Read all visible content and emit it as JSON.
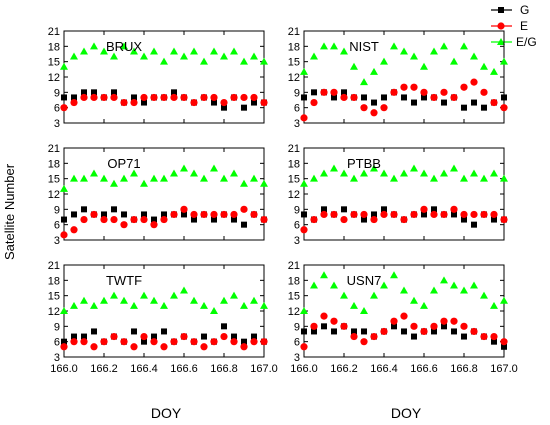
{
  "figure": {
    "ylabel": "Satellite Number",
    "xlabel": "DOY",
    "legend": [
      {
        "label": "G",
        "color": "#000000",
        "marker": "square"
      },
      {
        "label": "E",
        "color": "#ff0000",
        "marker": "circle"
      },
      {
        "label": "E/G",
        "color": "#00ff00",
        "marker": "triangle"
      }
    ]
  },
  "chart_data": [
    {
      "type": "scatter",
      "title": "BRUX",
      "xlim": [
        166.0,
        167.0
      ],
      "ylim": [
        3,
        21
      ],
      "xticks": [
        "166.0",
        "166.2",
        "166.4",
        "166.6",
        "166.8",
        "167.0"
      ],
      "yticks": [
        "3",
        "6",
        "9",
        "12",
        "15",
        "18",
        "21"
      ],
      "series": [
        {
          "name": "G",
          "x": [
            166.0,
            166.05,
            166.1,
            166.15,
            166.2,
            166.25,
            166.3,
            166.35,
            166.4,
            166.45,
            166.5,
            166.55,
            166.6,
            166.65,
            166.7,
            166.75,
            166.8,
            166.85,
            166.9,
            166.95,
            167.0
          ],
          "y": [
            8,
            8,
            9,
            9,
            8,
            9,
            7,
            8,
            7,
            8,
            8,
            9,
            8,
            7,
            8,
            7,
            6,
            8,
            6,
            7,
            7
          ]
        },
        {
          "name": "E",
          "x": [
            166.0,
            166.05,
            166.1,
            166.15,
            166.2,
            166.25,
            166.3,
            166.35,
            166.4,
            166.45,
            166.5,
            166.55,
            166.6,
            166.65,
            166.7,
            166.75,
            166.8,
            166.85,
            166.9,
            166.95,
            167.0
          ],
          "y": [
            6,
            7,
            8,
            8,
            8,
            8,
            7,
            7,
            8,
            8,
            8,
            8,
            8,
            7,
            8,
            8,
            7,
            8,
            8,
            8,
            7
          ]
        },
        {
          "name": "E/G",
          "x": [
            166.0,
            166.05,
            166.1,
            166.15,
            166.2,
            166.25,
            166.3,
            166.35,
            166.4,
            166.45,
            166.5,
            166.55,
            166.6,
            166.65,
            166.7,
            166.75,
            166.8,
            166.85,
            166.9,
            166.95,
            167.0
          ],
          "y": [
            14,
            16,
            17,
            18,
            17,
            16,
            18,
            17,
            16,
            17,
            15,
            17,
            16,
            17,
            15,
            17,
            16,
            17,
            15,
            16,
            15
          ]
        }
      ]
    },
    {
      "type": "scatter",
      "title": "NIST",
      "xlim": [
        166.0,
        167.0
      ],
      "ylim": [
        3,
        21
      ],
      "xticks": [
        "166.0",
        "166.2",
        "166.4",
        "166.6",
        "166.8",
        "167.0"
      ],
      "yticks": [
        "3",
        "6",
        "9",
        "12",
        "15",
        "18",
        "21"
      ],
      "series": [
        {
          "name": "G",
          "x": [
            166.0,
            166.05,
            166.1,
            166.15,
            166.2,
            166.25,
            166.3,
            166.35,
            166.4,
            166.45,
            166.5,
            166.55,
            166.6,
            166.65,
            166.7,
            166.75,
            166.8,
            166.85,
            166.9,
            166.95,
            167.0
          ],
          "y": [
            8,
            9,
            9,
            8,
            9,
            8,
            8,
            7,
            8,
            9,
            8,
            7,
            8,
            8,
            7,
            8,
            6,
            7,
            6,
            7,
            8
          ]
        },
        {
          "name": "E",
          "x": [
            166.0,
            166.05,
            166.1,
            166.15,
            166.2,
            166.25,
            166.3,
            166.35,
            166.4,
            166.45,
            166.5,
            166.55,
            166.6,
            166.65,
            166.7,
            166.75,
            166.8,
            166.85,
            166.9,
            166.95,
            167.0
          ],
          "y": [
            4,
            7,
            9,
            9,
            8,
            8,
            6,
            5,
            6,
            9,
            10,
            10,
            9,
            8,
            9,
            8,
            10,
            11,
            9,
            7,
            6
          ]
        },
        {
          "name": "E/G",
          "x": [
            166.0,
            166.05,
            166.1,
            166.15,
            166.2,
            166.25,
            166.3,
            166.35,
            166.4,
            166.45,
            166.5,
            166.55,
            166.6,
            166.65,
            166.7,
            166.75,
            166.8,
            166.85,
            166.9,
            166.95,
            167.0
          ],
          "y": [
            13,
            16,
            18,
            18,
            17,
            14,
            11,
            13,
            15,
            18,
            17,
            16,
            14,
            17,
            18,
            15,
            18,
            16,
            14,
            13,
            15
          ]
        }
      ]
    },
    {
      "type": "scatter",
      "title": "OP71",
      "xlim": [
        166.0,
        167.0
      ],
      "ylim": [
        3,
        21
      ],
      "xticks": [
        "166.0",
        "166.2",
        "166.4",
        "166.6",
        "166.8",
        "167.0"
      ],
      "yticks": [
        "3",
        "6",
        "9",
        "12",
        "15",
        "18",
        "21"
      ],
      "series": [
        {
          "name": "G",
          "x": [
            166.0,
            166.05,
            166.1,
            166.15,
            166.2,
            166.25,
            166.3,
            166.35,
            166.4,
            166.45,
            166.5,
            166.55,
            166.6,
            166.65,
            166.7,
            166.75,
            166.8,
            166.85,
            166.9,
            166.95,
            167.0
          ],
          "y": [
            7,
            8,
            9,
            8,
            8,
            9,
            8,
            7,
            8,
            7,
            8,
            8,
            8,
            7,
            8,
            7,
            8,
            7,
            6,
            8,
            7
          ]
        },
        {
          "name": "E",
          "x": [
            166.0,
            166.05,
            166.1,
            166.15,
            166.2,
            166.25,
            166.3,
            166.35,
            166.4,
            166.45,
            166.5,
            166.55,
            166.6,
            166.65,
            166.7,
            166.75,
            166.8,
            166.85,
            166.9,
            166.95,
            167.0
          ],
          "y": [
            4,
            5,
            7,
            8,
            7,
            7,
            6,
            7,
            7,
            6,
            7,
            8,
            9,
            8,
            8,
            8,
            8,
            8,
            9,
            8,
            7
          ]
        },
        {
          "name": "E/G",
          "x": [
            166.0,
            166.05,
            166.1,
            166.15,
            166.2,
            166.25,
            166.3,
            166.35,
            166.4,
            166.45,
            166.5,
            166.55,
            166.6,
            166.65,
            166.7,
            166.75,
            166.8,
            166.85,
            166.9,
            166.95,
            167.0
          ],
          "y": [
            13,
            15,
            15,
            16,
            15,
            14,
            15,
            16,
            14,
            15,
            15,
            16,
            17,
            16,
            15,
            17,
            15,
            16,
            14,
            15,
            14
          ]
        }
      ]
    },
    {
      "type": "scatter",
      "title": "PTBB",
      "xlim": [
        166.0,
        167.0
      ],
      "ylim": [
        3,
        21
      ],
      "xticks": [
        "166.0",
        "166.2",
        "166.4",
        "166.6",
        "166.8",
        "167.0"
      ],
      "yticks": [
        "3",
        "6",
        "9",
        "12",
        "15",
        "18",
        "21"
      ],
      "series": [
        {
          "name": "G",
          "x": [
            166.0,
            166.05,
            166.1,
            166.15,
            166.2,
            166.25,
            166.3,
            166.35,
            166.4,
            166.45,
            166.5,
            166.55,
            166.6,
            166.65,
            166.7,
            166.75,
            166.8,
            166.85,
            166.9,
            166.95,
            167.0
          ],
          "y": [
            8,
            7,
            9,
            8,
            9,
            8,
            7,
            8,
            9,
            8,
            7,
            8,
            8,
            9,
            8,
            8,
            7,
            6,
            8,
            7,
            7
          ]
        },
        {
          "name": "E",
          "x": [
            166.0,
            166.05,
            166.1,
            166.15,
            166.2,
            166.25,
            166.3,
            166.35,
            166.4,
            166.45,
            166.5,
            166.55,
            166.6,
            166.65,
            166.7,
            166.75,
            166.8,
            166.85,
            166.9,
            166.95,
            167.0
          ],
          "y": [
            5,
            7,
            8,
            8,
            7,
            8,
            8,
            7,
            8,
            8,
            7,
            8,
            9,
            8,
            8,
            9,
            8,
            8,
            8,
            8,
            7
          ]
        },
        {
          "name": "E/G",
          "x": [
            166.0,
            166.05,
            166.1,
            166.15,
            166.2,
            166.25,
            166.3,
            166.35,
            166.4,
            166.45,
            166.5,
            166.55,
            166.6,
            166.65,
            166.7,
            166.75,
            166.8,
            166.85,
            166.9,
            166.95,
            167.0
          ],
          "y": [
            14,
            15,
            16,
            17,
            16,
            15,
            16,
            17,
            16,
            15,
            16,
            17,
            16,
            15,
            16,
            17,
            15,
            16,
            15,
            16,
            15
          ]
        }
      ]
    },
    {
      "type": "scatter",
      "title": "TWTF",
      "xlim": [
        166.0,
        167.0
      ],
      "ylim": [
        3,
        21
      ],
      "xticks": [
        "166.0",
        "166.2",
        "166.4",
        "166.6",
        "166.8",
        "167.0"
      ],
      "yticks": [
        "3",
        "6",
        "9",
        "12",
        "15",
        "18",
        "21"
      ],
      "series": [
        {
          "name": "G",
          "x": [
            166.0,
            166.05,
            166.1,
            166.15,
            166.2,
            166.25,
            166.3,
            166.35,
            166.4,
            166.45,
            166.5,
            166.55,
            166.6,
            166.65,
            166.7,
            166.75,
            166.8,
            166.85,
            166.9,
            166.95,
            167.0
          ],
          "y": [
            6,
            7,
            7,
            8,
            6,
            7,
            6,
            8,
            6,
            7,
            8,
            6,
            7,
            6,
            7,
            6,
            9,
            7,
            6,
            7,
            6
          ]
        },
        {
          "name": "E",
          "x": [
            166.0,
            166.05,
            166.1,
            166.15,
            166.2,
            166.25,
            166.3,
            166.35,
            166.4,
            166.45,
            166.5,
            166.55,
            166.6,
            166.65,
            166.7,
            166.75,
            166.8,
            166.85,
            166.9,
            166.95,
            167.0
          ],
          "y": [
            5,
            6,
            6,
            5,
            6,
            7,
            6,
            5,
            7,
            6,
            5,
            6,
            7,
            6,
            5,
            6,
            7,
            6,
            5,
            6,
            6
          ]
        },
        {
          "name": "E/G",
          "x": [
            166.0,
            166.05,
            166.1,
            166.15,
            166.2,
            166.25,
            166.3,
            166.35,
            166.4,
            166.45,
            166.5,
            166.55,
            166.6,
            166.65,
            166.7,
            166.75,
            166.8,
            166.85,
            166.9,
            166.95,
            167.0
          ],
          "y": [
            12,
            13,
            14,
            13,
            14,
            15,
            14,
            13,
            15,
            14,
            13,
            15,
            16,
            14,
            13,
            12,
            14,
            15,
            13,
            14,
            13
          ]
        }
      ]
    },
    {
      "type": "scatter",
      "title": "USN7",
      "xlim": [
        166.0,
        167.0
      ],
      "ylim": [
        3,
        21
      ],
      "xticks": [
        "166.0",
        "166.2",
        "166.4",
        "166.6",
        "166.8",
        "167.0"
      ],
      "yticks": [
        "3",
        "6",
        "9",
        "12",
        "15",
        "18",
        "21"
      ],
      "series": [
        {
          "name": "G",
          "x": [
            166.0,
            166.05,
            166.1,
            166.15,
            166.2,
            166.25,
            166.3,
            166.35,
            166.4,
            166.45,
            166.5,
            166.55,
            166.6,
            166.65,
            166.7,
            166.75,
            166.8,
            166.85,
            166.9,
            166.95,
            167.0
          ],
          "y": [
            8,
            8,
            9,
            8,
            9,
            8,
            8,
            7,
            8,
            9,
            8,
            7,
            8,
            8,
            9,
            8,
            7,
            8,
            7,
            6,
            5
          ]
        },
        {
          "name": "E",
          "x": [
            166.0,
            166.05,
            166.1,
            166.15,
            166.2,
            166.25,
            166.3,
            166.35,
            166.4,
            166.45,
            166.5,
            166.55,
            166.6,
            166.65,
            166.7,
            166.75,
            166.8,
            166.85,
            166.9,
            166.95,
            167.0
          ],
          "y": [
            5,
            9,
            11,
            10,
            9,
            7,
            6,
            7,
            8,
            10,
            11,
            9,
            8,
            9,
            10,
            10,
            9,
            8,
            7,
            7,
            6
          ]
        },
        {
          "name": "E/G",
          "x": [
            166.0,
            166.05,
            166.1,
            166.15,
            166.2,
            166.25,
            166.3,
            166.35,
            166.4,
            166.45,
            166.5,
            166.55,
            166.6,
            166.65,
            166.7,
            166.75,
            166.8,
            166.85,
            166.9,
            166.95,
            167.0
          ],
          "y": [
            12,
            17,
            19,
            17,
            15,
            13,
            12,
            15,
            17,
            19,
            16,
            14,
            13,
            16,
            18,
            17,
            16,
            17,
            15,
            13,
            14
          ]
        }
      ]
    }
  ]
}
